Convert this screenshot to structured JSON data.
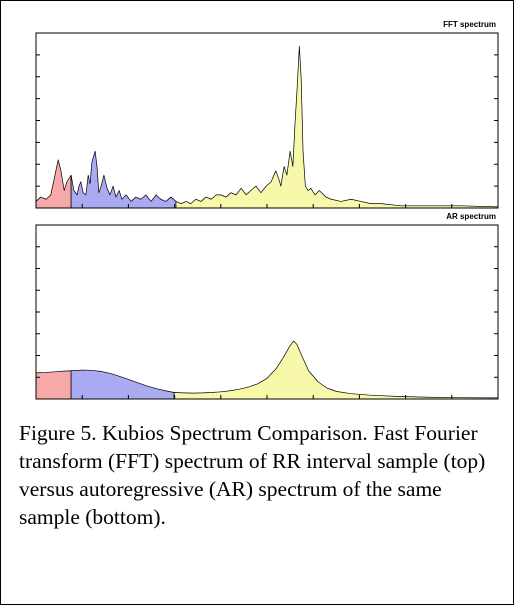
{
  "chart_data": [
    {
      "type": "area",
      "title": "FFT spectrum",
      "xlim": [
        0,
        100
      ],
      "xticks": [
        0,
        10,
        20,
        30,
        40,
        50,
        60,
        70,
        80,
        90,
        100
      ],
      "ylim": [
        0,
        8
      ],
      "yticks": [
        0,
        1,
        2,
        3,
        4,
        5,
        6,
        7,
        8
      ],
      "series": [
        {
          "color": "#f7a8a8",
          "x": [
            0,
            1,
            2.2,
            3.2,
            4.3,
            4.8,
            5.4,
            6.1,
            6.7,
            7.6
          ],
          "values": [
            0.3,
            0.5,
            0.4,
            0.6,
            1.7,
            2.2,
            1.7,
            0.8,
            1.2,
            1.5
          ]
        },
        {
          "color": "#aaaaf2",
          "x": [
            7.6,
            8.2,
            8.9,
            9.3,
            9.7,
            10.2,
            10.8,
            11.3,
            11.7,
            12.1,
            12.8,
            13.2,
            13.6,
            14.1,
            14.7,
            15.4,
            16,
            16.7,
            17.3,
            18,
            18.6,
            19.5,
            20.6,
            21.6,
            22.7,
            23.8,
            24.9,
            26,
            27,
            28.1,
            29.2,
            30.3
          ],
          "values": [
            1.5,
            0.8,
            0.6,
            1.0,
            1.2,
            0.7,
            0.6,
            1.5,
            1.1,
            2.1,
            2.6,
            1.9,
            0.7,
            1.0,
            1.5,
            0.9,
            0.6,
            1.0,
            0.5,
            0.8,
            0.4,
            0.6,
            0.3,
            0.5,
            0.4,
            0.6,
            0.3,
            0.6,
            0.4,
            0.3,
            0.5,
            0.3
          ]
        },
        {
          "color": "#f8f8aa",
          "x": [
            30.3,
            31.4,
            32.5,
            33.5,
            34.6,
            35.7,
            36.8,
            37.9,
            39,
            40,
            41.1,
            42.2,
            43.3,
            44.4,
            45.5,
            46.5,
            47.6,
            48.7,
            49.8,
            50.9,
            51.9,
            52.6,
            53,
            53.7,
            54.3,
            55,
            55.6,
            56.1,
            56.5,
            57,
            57.4,
            57.8,
            58.3,
            58.9,
            59.5,
            60.4,
            61.3,
            62.8,
            63.9,
            66,
            68.2,
            70.3,
            72.5,
            74.7,
            79,
            85.5,
            92,
            100
          ],
          "values": [
            0.3,
            0.2,
            0.3,
            0.2,
            0.4,
            0.3,
            0.5,
            0.4,
            0.6,
            0.6,
            0.5,
            0.7,
            0.6,
            0.9,
            0.6,
            0.8,
            1.0,
            0.7,
            1.0,
            1.2,
            1.7,
            1.3,
            1.0,
            1.9,
            1.5,
            2.6,
            1.9,
            4.0,
            5.4,
            7.4,
            5.9,
            2.6,
            1.0,
            0.8,
            0.9,
            0.6,
            0.8,
            0.5,
            0.4,
            0.3,
            0.4,
            0.3,
            0.2,
            0.2,
            0.1,
            0.1,
            0.1,
            0.05
          ]
        }
      ]
    },
    {
      "type": "area",
      "title": "AR spectrum",
      "xlim": [
        0,
        100
      ],
      "xticks": [
        0,
        10,
        20,
        30,
        40,
        50,
        60,
        70,
        80,
        90,
        100
      ],
      "ylim": [
        0,
        8
      ],
      "yticks": [
        0,
        1,
        2,
        3,
        4,
        5,
        6,
        7,
        8
      ],
      "series": [
        {
          "color": "#f7a8a8",
          "x": [
            0,
            2,
            4,
            6,
            7.6
          ],
          "values": [
            1.2,
            1.22,
            1.25,
            1.28,
            1.3
          ]
        },
        {
          "color": "#aaaaf2",
          "x": [
            7.6,
            10,
            12,
            14,
            16,
            18,
            20,
            22,
            24,
            26,
            28,
            29.9
          ],
          "values": [
            1.3,
            1.33,
            1.32,
            1.27,
            1.18,
            1.05,
            0.9,
            0.75,
            0.6,
            0.48,
            0.38,
            0.3
          ]
        },
        {
          "color": "#f8f8aa",
          "x": [
            29.9,
            32,
            34,
            36,
            38,
            40,
            42,
            44,
            46,
            48,
            50,
            52,
            53.5,
            55,
            55.8,
            56.5,
            57.5,
            59,
            61,
            63,
            65,
            68,
            72,
            78,
            85,
            92,
            100
          ],
          "values": [
            0.3,
            0.28,
            0.27,
            0.28,
            0.3,
            0.33,
            0.38,
            0.45,
            0.55,
            0.7,
            0.95,
            1.4,
            1.9,
            2.45,
            2.67,
            2.5,
            2.0,
            1.3,
            0.8,
            0.5,
            0.35,
            0.25,
            0.18,
            0.12,
            0.08,
            0.06,
            0.05
          ]
        }
      ]
    }
  ],
  "caption": "Figure 5. Kubios Spectrum Comparison. Fast Fourier transform (FFT) spectrum of RR interval sample (top) versus autoregressive (AR) spectrum of the same sample (bottom)."
}
